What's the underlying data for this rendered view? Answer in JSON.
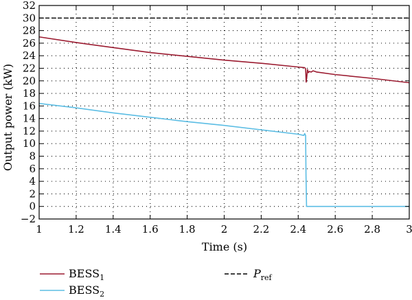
{
  "chart_data": {
    "type": "line",
    "xlabel": "Time (s)",
    "ylabel": "Output power (kW)",
    "xlim": [
      1,
      3
    ],
    "ylim": [
      -2,
      32
    ],
    "xticks": [
      1,
      1.2,
      1.4,
      1.6,
      1.8,
      2,
      2.2,
      2.4,
      2.6,
      2.8,
      3
    ],
    "xtick_labels": [
      "1",
      "1.2",
      "1.4",
      "1.6",
      "1.8",
      "2",
      "2.2",
      "2.4",
      "2.6",
      "2.8",
      "3"
    ],
    "yticks": [
      -2,
      0,
      2,
      4,
      6,
      8,
      10,
      12,
      14,
      16,
      18,
      20,
      22,
      24,
      26,
      28,
      30,
      32
    ],
    "ytick_labels": [
      "−2",
      "0",
      "2",
      "4",
      "6",
      "8",
      "10",
      "12",
      "14",
      "16",
      "18",
      "20",
      "22",
      "24",
      "26",
      "28",
      "30",
      "32"
    ],
    "grid": "dotted",
    "legend_placement": "bottom",
    "series": [
      {
        "name": "BESS1",
        "label_main": "BESS",
        "label_sub": "1",
        "color": "#9b1b30",
        "style": "solid",
        "x": [
          1.0,
          1.2,
          1.4,
          1.6,
          1.8,
          2.0,
          2.2,
          2.4,
          2.435,
          2.44,
          2.443,
          2.446,
          2.45,
          2.455,
          2.46,
          2.47,
          2.48,
          2.49,
          2.5,
          2.6,
          2.8,
          3.0
        ],
        "y": [
          27.0,
          26.1,
          25.3,
          24.5,
          23.9,
          23.3,
          22.8,
          22.2,
          22.1,
          21.9,
          19.8,
          20.5,
          21.8,
          21.3,
          21.5,
          21.4,
          21.6,
          21.5,
          21.4,
          21.0,
          20.4,
          19.7
        ]
      },
      {
        "name": "BESS2",
        "label_main": "BESS",
        "label_sub": "2",
        "color": "#5bbde4",
        "style": "solid",
        "x": [
          1.0,
          1.2,
          1.4,
          1.6,
          1.8,
          2.0,
          2.2,
          2.4,
          2.43,
          2.435,
          2.44,
          2.442,
          2.445,
          2.6,
          2.8,
          3.0
        ],
        "y": [
          16.4,
          15.7,
          14.9,
          14.2,
          13.5,
          12.9,
          12.2,
          11.5,
          11.3,
          11.6,
          11.3,
          5.0,
          0.0,
          0.0,
          0.0,
          0.0
        ]
      },
      {
        "name": "Pref",
        "label_main": "P",
        "label_sub": "ref",
        "color": "#000000",
        "style": "dashed",
        "x": [
          1.0,
          3.0
        ],
        "y": [
          30.0,
          30.0
        ]
      }
    ]
  }
}
